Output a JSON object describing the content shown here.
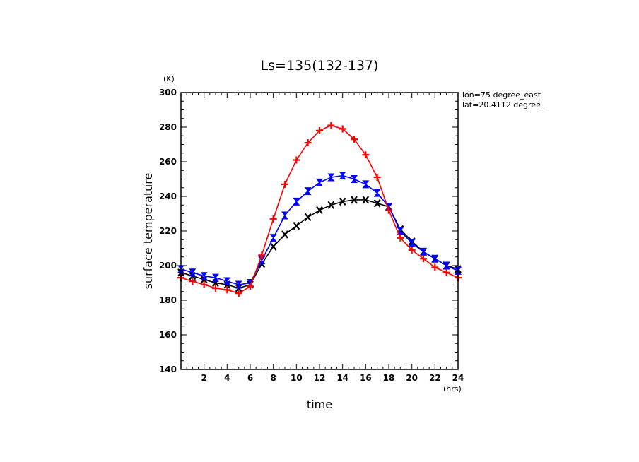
{
  "chart_data": {
    "type": "line",
    "title": "Ls=135(132-137)",
    "xlabel": "time",
    "ylabel": "surface temperature",
    "x_unit": "(hrs)",
    "y_unit": "(K)",
    "annotations": [
      "lon=75 degree_east",
      "lat=20.4112 degree_"
    ],
    "xlim": [
      0,
      24
    ],
    "ylim": [
      140,
      300
    ],
    "x_ticks": [
      2,
      4,
      6,
      8,
      10,
      12,
      14,
      16,
      18,
      20,
      22,
      24
    ],
    "y_ticks": [
      140,
      160,
      180,
      200,
      220,
      240,
      260,
      280,
      300
    ],
    "x": [
      0,
      1,
      2,
      3,
      4,
      5,
      6,
      7,
      8,
      9,
      10,
      11,
      12,
      13,
      14,
      15,
      16,
      17,
      18,
      19,
      20,
      21,
      22,
      23,
      24
    ],
    "series": [
      {
        "color": "#ff0000",
        "marker": "plus",
        "values": [
          193,
          191,
          189,
          187,
          186,
          184,
          188,
          206,
          227,
          247,
          261,
          271,
          278,
          281,
          279,
          273,
          264,
          251,
          232,
          216,
          209,
          204,
          199,
          196,
          193
        ]
      },
      {
        "color": "#0000ff",
        "marker": "bowtie",
        "values": [
          198,
          196,
          194,
          193,
          191,
          189,
          190,
          203,
          216,
          229,
          237,
          243,
          248,
          251,
          252,
          250,
          247,
          242,
          234,
          220,
          213,
          208,
          204,
          200,
          197
        ]
      },
      {
        "color": "#000000",
        "marker": "cross",
        "values": [
          196,
          194,
          192,
          190,
          189,
          187,
          189,
          201,
          211,
          218,
          223,
          228,
          232,
          235,
          237,
          238,
          238,
          236,
          234,
          221,
          214,
          208,
          204,
          200,
          198
        ]
      }
    ]
  }
}
